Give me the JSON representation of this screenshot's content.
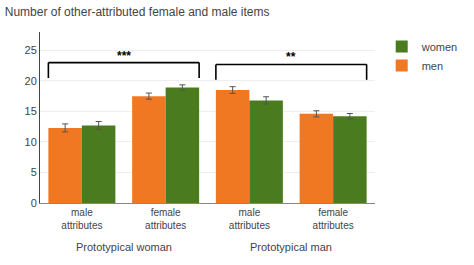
{
  "chart_data": {
    "type": "bar",
    "title": "Number of other-attributed female and male items",
    "categories": [
      "male\nattributes",
      "female\nattributes",
      "male\nattributes",
      "female\nattributes"
    ],
    "groups": [
      {
        "label": "Prototypical woman",
        "span": 2,
        "significance": "***"
      },
      {
        "label": "Prototypical man",
        "span": 2,
        "significance": "**"
      }
    ],
    "series": [
      {
        "name": "men",
        "color": "#f07823",
        "values": [
          12.3,
          17.5,
          18.5,
          14.6
        ],
        "errors": [
          0.65,
          0.5,
          0.55,
          0.5
        ]
      },
      {
        "name": "women",
        "color": "#4a7c1f",
        "values": [
          12.7,
          18.9,
          16.8,
          14.2
        ],
        "errors": [
          0.65,
          0.45,
          0.6,
          0.45
        ]
      }
    ],
    "ylim": [
      0,
      28
    ],
    "yticks": [
      0,
      5,
      10,
      15,
      20,
      25
    ],
    "grid": true
  }
}
